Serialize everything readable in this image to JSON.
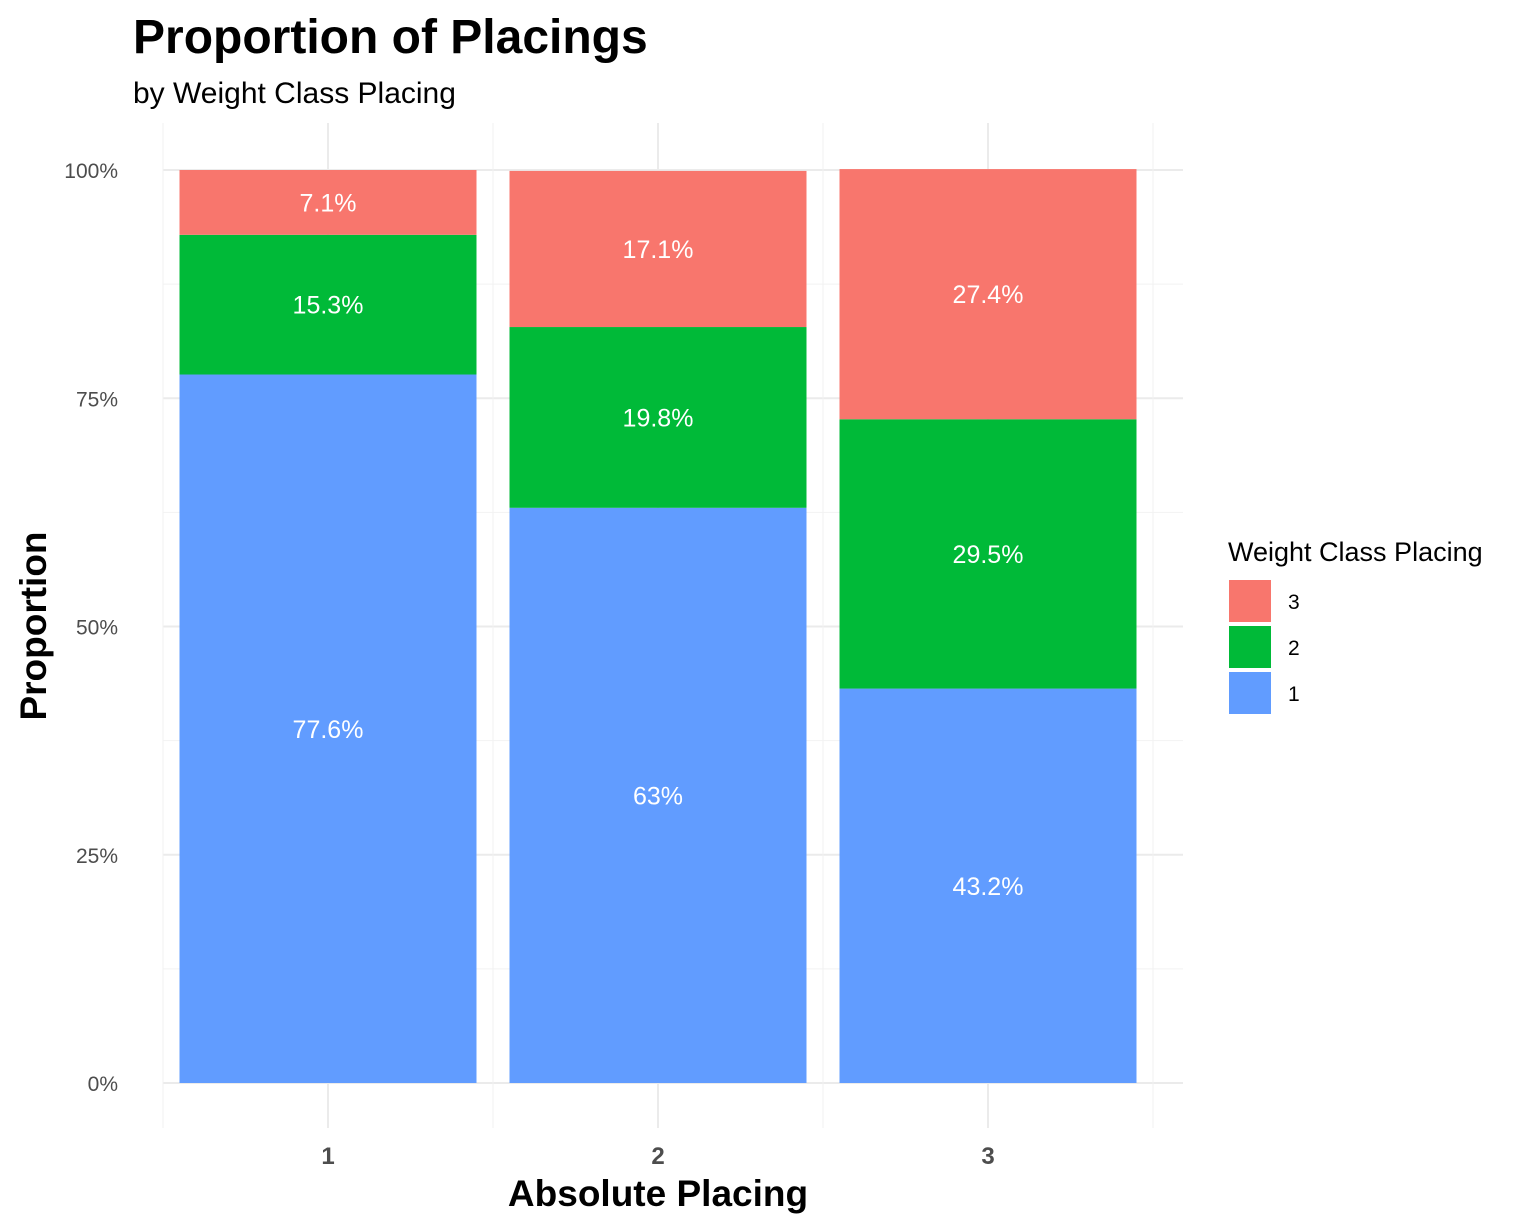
{
  "chart_data": {
    "type": "bar",
    "stacked": true,
    "title": "Proportion of Placings",
    "subtitle": "by Weight Class Placing",
    "xlabel": "Absolute Placing",
    "ylabel": "Proportion",
    "categories": [
      "1",
      "2",
      "3"
    ],
    "ylim": [
      0,
      1
    ],
    "yticks": [
      0,
      0.25,
      0.5,
      0.75,
      1.0
    ],
    "ytick_labels": [
      "0%",
      "25%",
      "50%",
      "75%",
      "100%"
    ],
    "grid": true,
    "legend": {
      "title": "Weight Class Placing",
      "placement": "right",
      "order": [
        "3",
        "2",
        "1"
      ]
    },
    "series": [
      {
        "name": "1",
        "color": "#619CFF",
        "values": [
          0.776,
          0.63,
          0.432
        ],
        "labels": [
          "77.6%",
          "63%",
          "43.2%"
        ]
      },
      {
        "name": "2",
        "color": "#00BA38",
        "values": [
          0.153,
          0.198,
          0.295
        ],
        "labels": [
          "15.3%",
          "19.8%",
          "29.5%"
        ]
      },
      {
        "name": "3",
        "color": "#F8766D",
        "values": [
          0.071,
          0.171,
          0.274
        ],
        "labels": [
          "7.1%",
          "17.1%",
          "27.4%"
        ]
      }
    ]
  }
}
